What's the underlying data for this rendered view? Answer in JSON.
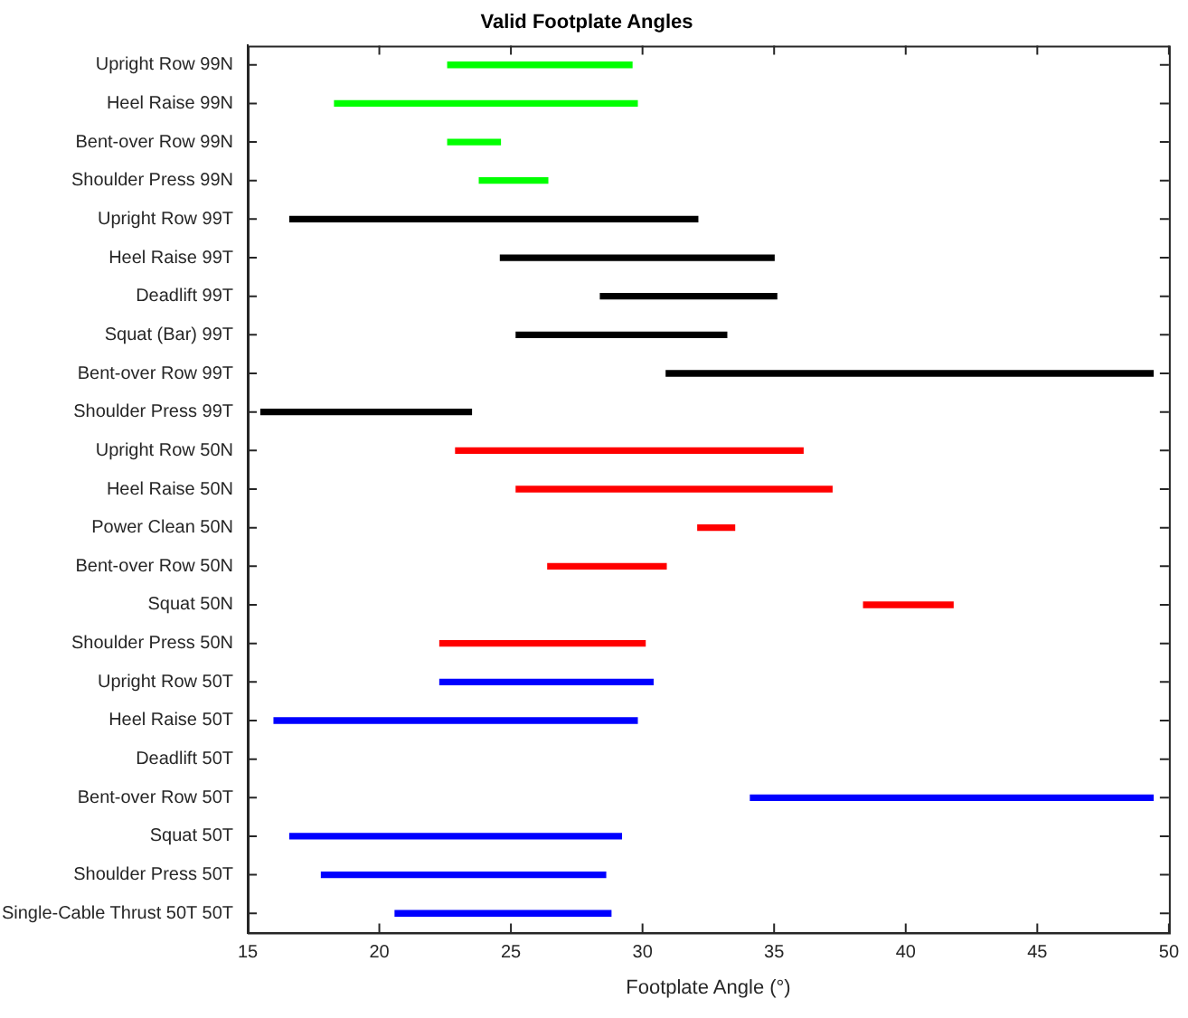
{
  "chart_data": {
    "type": "bar",
    "orientation": "horizontal",
    "title": "Valid Footplate Angles",
    "xlabel": "Footplate Angle (°)",
    "categories": [
      "Upright Row 99N",
      "Heel Raise 99N",
      "Bent-over Row 99N",
      "Shoulder Press 99N",
      "Upright Row 99T",
      "Heel Raise 99T",
      "Deadlift 99T",
      "Squat (Bar) 99T",
      "Bent-over Row 99T",
      "Shoulder Press 99T",
      "Upright Row 50N",
      "Heel Raise 50N",
      "Power Clean 50N",
      "Bent-over Row 50N",
      "Squat 50N",
      "Shoulder Press 50N",
      "Upright Row 50T",
      "Heel Raise 50T",
      "Deadlift 50T",
      "Bent-over Row 50T",
      "Squat 50T",
      "Shoulder Press 50T",
      "Single-Cable Thrust 50T 50T"
    ],
    "base": [
      22.6,
      18.3,
      22.6,
      23.8,
      16.6,
      24.6,
      28.4,
      25.2,
      30.9,
      15.5,
      22.9,
      25.2,
      32.1,
      26.4,
      38.4,
      22.3,
      22.3,
      16.0,
      null,
      34.1,
      16.6,
      17.8,
      20.6
    ],
    "values": [
      7.0,
      11.5,
      2.0,
      2.6,
      15.5,
      10.4,
      6.7,
      8.0,
      18.5,
      8.0,
      13.2,
      12.0,
      1.4,
      4.5,
      3.4,
      7.8,
      8.1,
      13.8,
      null,
      15.3,
      12.6,
      10.8,
      8.2
    ],
    "colors": [
      "#00ff00",
      "#00ff00",
      "#00ff00",
      "#00ff00",
      "#000000",
      "#000000",
      "#000000",
      "#000000",
      "#000000",
      "#000000",
      "#ff0000",
      "#ff0000",
      "#ff0000",
      "#ff0000",
      "#ff0000",
      "#ff0000",
      "#0000ff",
      "#0000ff",
      "#0000ff",
      "#0000ff",
      "#0000ff",
      "#0000ff",
      "#0000ff"
    ],
    "xlim": [
      15,
      50
    ],
    "xticks": [
      15,
      20,
      25,
      30,
      35,
      40,
      45,
      50
    ],
    "grid": false,
    "legend": false
  }
}
